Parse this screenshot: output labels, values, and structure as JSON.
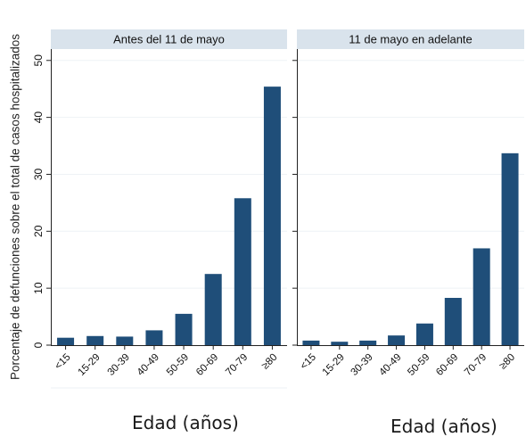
{
  "chart_data": {
    "type": "bar",
    "ylabel": "Porcentaje de defunciones sobre el total de casos hospitalizados",
    "xlabel": "Edad (años)",
    "categories": [
      "<15",
      "15-29",
      "30-39",
      "40-49",
      "50-59",
      "60-69",
      "70-79",
      "≥80"
    ],
    "ylim": [
      0,
      52
    ],
    "yticks": [
      0,
      10,
      20,
      30,
      40,
      50
    ],
    "grid": true,
    "bar_color": "#1f4e79",
    "panels": [
      {
        "title": "Antes del 11 de mayo",
        "values": [
          1.3,
          1.6,
          1.5,
          2.6,
          5.5,
          12.5,
          25.8,
          45.4
        ]
      },
      {
        "title": "11 de mayo en adelante",
        "values": [
          0.8,
          0.6,
          0.8,
          1.7,
          3.8,
          8.3,
          17.0,
          33.7
        ]
      }
    ]
  }
}
